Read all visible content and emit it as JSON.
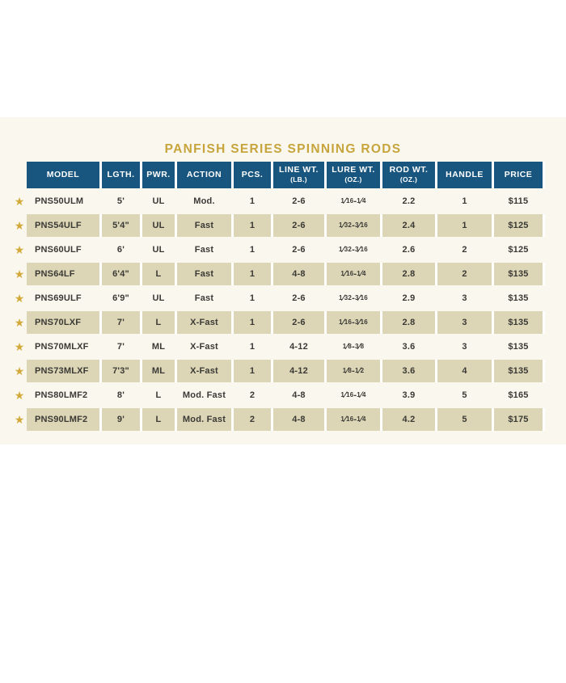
{
  "title": {
    "text": "PANFISH SERIES SPINNING RODS"
  },
  "colors": {
    "title_gold": "#c7a43c",
    "star_gold": "#d2a93a",
    "header_blue": "#18557f",
    "row_beige": "#dcd6b6",
    "band_cream": "#faf8ee",
    "text_dark": "#3a3935",
    "header_text": "#ffffff"
  },
  "icons": {
    "row_star": "★"
  },
  "chart_data": {
    "type": "table",
    "title": "PANFISH SERIES SPINNING RODS",
    "columns": [
      {
        "key": "model",
        "label": "MODEL",
        "sub": ""
      },
      {
        "key": "length",
        "label": "LGTH.",
        "sub": ""
      },
      {
        "key": "power",
        "label": "PWR.",
        "sub": ""
      },
      {
        "key": "action",
        "label": "ACTION",
        "sub": ""
      },
      {
        "key": "pieces",
        "label": "PCS.",
        "sub": ""
      },
      {
        "key": "line-wt",
        "label": "LINE WT.",
        "sub": "(LB.)"
      },
      {
        "key": "lure-wt",
        "label": "LURE WT.",
        "sub": "(OZ.)"
      },
      {
        "key": "rod-wt",
        "label": "ROD WT.",
        "sub": "(OZ.)"
      },
      {
        "key": "handle",
        "label": "HANDLE",
        "sub": ""
      },
      {
        "key": "price",
        "label": "PRICE",
        "sub": ""
      }
    ],
    "rows": [
      [
        "PNS50ULM",
        "5'",
        "UL",
        "Mod.",
        "1",
        "2-6",
        "1/16-1/4",
        "2.2",
        "1",
        "$115"
      ],
      [
        "PNS54ULF",
        "5'4\"",
        "UL",
        "Fast",
        "1",
        "2-6",
        "1/32-3/16",
        "2.4",
        "1",
        "$125"
      ],
      [
        "PNS60ULF",
        "6'",
        "UL",
        "Fast",
        "1",
        "2-6",
        "1/32-3/16",
        "2.6",
        "2",
        "$125"
      ],
      [
        "PNS64LF",
        "6'4\"",
        "L",
        "Fast",
        "1",
        "4-8",
        "1/16-1/4",
        "2.8",
        "2",
        "$135"
      ],
      [
        "PNS69ULF",
        "6'9\"",
        "UL",
        "Fast",
        "1",
        "2-6",
        "1/32-3/16",
        "2.9",
        "3",
        "$135"
      ],
      [
        "PNS70LXF",
        "7'",
        "L",
        "X-Fast",
        "1",
        "2-6",
        "1/16-3/16",
        "2.8",
        "3",
        "$135"
      ],
      [
        "PNS70MLXF",
        "7'",
        "ML",
        "X-Fast",
        "1",
        "4-12",
        "1/8-3/8",
        "3.6",
        "3",
        "$135"
      ],
      [
        "PNS73MLXF",
        "7'3\"",
        "ML",
        "X-Fast",
        "1",
        "4-12",
        "1/8-1/2",
        "3.6",
        "4",
        "$135"
      ],
      [
        "PNS80LMF2",
        "8'",
        "L",
        "Mod. Fast",
        "2",
        "4-8",
        "1/16-1/4",
        "3.9",
        "5",
        "$165"
      ],
      [
        "PNS90LMF2",
        "9'",
        "L",
        "Mod. Fast",
        "2",
        "4-8",
        "1/16-1/4",
        "4.2",
        "5",
        "$175"
      ]
    ]
  }
}
